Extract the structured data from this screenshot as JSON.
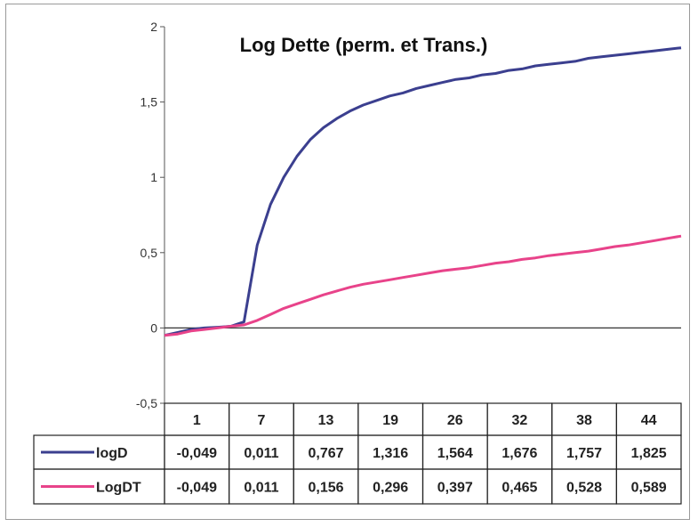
{
  "chart_data": {
    "type": "line",
    "title": "Log Dette (perm. et Trans.)",
    "categories": [
      "1",
      "7",
      "13",
      "19",
      "26",
      "32",
      "38",
      "44"
    ],
    "ylim": [
      -0.5,
      2
    ],
    "yticks": [
      "2",
      "1,5",
      "1",
      "0,5",
      "0",
      "-0,5"
    ],
    "grid": false,
    "legend_placement": "data-table",
    "series": [
      {
        "name": "logD",
        "color": "#3b3f8f",
        "labels": [
          "-0,049",
          "0,011",
          "0,767",
          "1,316",
          "1,564",
          "1,676",
          "1,757",
          "1,825"
        ],
        "points": [
          [
            1,
            -0.049
          ],
          [
            2,
            -0.03
          ],
          [
            3,
            -0.01
          ],
          [
            4,
            0.0
          ],
          [
            5,
            0.005
          ],
          [
            6,
            0.011
          ],
          [
            7,
            0.04
          ],
          [
            8,
            0.55
          ],
          [
            9,
            0.82
          ],
          [
            10,
            1.0
          ],
          [
            11,
            1.14
          ],
          [
            12,
            1.25
          ],
          [
            13,
            1.33
          ],
          [
            14,
            1.39
          ],
          [
            15,
            1.44
          ],
          [
            16,
            1.48
          ],
          [
            17,
            1.51
          ],
          [
            18,
            1.54
          ],
          [
            19,
            1.56
          ],
          [
            20,
            1.59
          ],
          [
            21,
            1.61
          ],
          [
            22,
            1.63
          ],
          [
            23,
            1.65
          ],
          [
            24,
            1.66
          ],
          [
            25,
            1.68
          ],
          [
            26,
            1.69
          ],
          [
            27,
            1.71
          ],
          [
            28,
            1.72
          ],
          [
            29,
            1.74
          ],
          [
            30,
            1.75
          ],
          [
            31,
            1.76
          ],
          [
            32,
            1.77
          ],
          [
            33,
            1.79
          ],
          [
            34,
            1.8
          ],
          [
            35,
            1.81
          ],
          [
            36,
            1.82
          ],
          [
            37,
            1.83
          ],
          [
            38,
            1.84
          ],
          [
            39,
            1.85
          ],
          [
            40,
            1.86
          ]
        ]
      },
      {
        "name": "LogDT",
        "color": "#e8438a",
        "labels": [
          "-0,049",
          "0,011",
          "0,156",
          "0,296",
          "0,397",
          "0,465",
          "0,528",
          "0,589"
        ],
        "points": [
          [
            1,
            -0.049
          ],
          [
            2,
            -0.04
          ],
          [
            3,
            -0.02
          ],
          [
            4,
            -0.01
          ],
          [
            5,
            0.0
          ],
          [
            6,
            0.011
          ],
          [
            7,
            0.02
          ],
          [
            8,
            0.05
          ],
          [
            9,
            0.09
          ],
          [
            10,
            0.13
          ],
          [
            11,
            0.16
          ],
          [
            12,
            0.19
          ],
          [
            13,
            0.22
          ],
          [
            14,
            0.245
          ],
          [
            15,
            0.27
          ],
          [
            16,
            0.29
          ],
          [
            17,
            0.305
          ],
          [
            18,
            0.32
          ],
          [
            19,
            0.335
          ],
          [
            20,
            0.35
          ],
          [
            21,
            0.365
          ],
          [
            22,
            0.38
          ],
          [
            23,
            0.39
          ],
          [
            24,
            0.4
          ],
          [
            25,
            0.415
          ],
          [
            26,
            0.43
          ],
          [
            27,
            0.44
          ],
          [
            28,
            0.455
          ],
          [
            29,
            0.465
          ],
          [
            30,
            0.48
          ],
          [
            31,
            0.49
          ],
          [
            32,
            0.5
          ],
          [
            33,
            0.51
          ],
          [
            34,
            0.525
          ],
          [
            35,
            0.54
          ],
          [
            36,
            0.55
          ],
          [
            37,
            0.565
          ],
          [
            38,
            0.58
          ],
          [
            39,
            0.595
          ],
          [
            40,
            0.61
          ]
        ]
      }
    ]
  }
}
